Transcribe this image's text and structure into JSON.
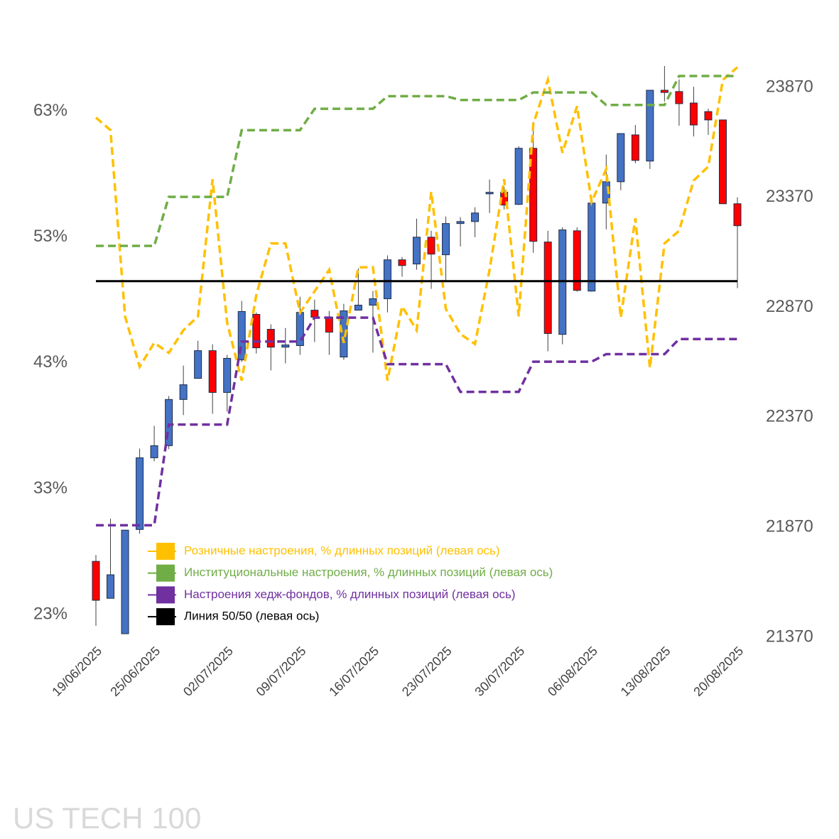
{
  "chart_data": {
    "type": "candlestick",
    "title": "US TECH 100",
    "categories": [
      "19/06/2025",
      null,
      null,
      null,
      "25/06/2025",
      null,
      null,
      null,
      null,
      "02/07/2025",
      null,
      null,
      null,
      null,
      "09/07/2025",
      null,
      null,
      null,
      null,
      "16/07/2025",
      null,
      null,
      null,
      null,
      "23/07/2025",
      null,
      null,
      null,
      null,
      "30/07/2025",
      null,
      null,
      null,
      null,
      "06/08/2025",
      null,
      null,
      null,
      null,
      "13/08/2025",
      null,
      null,
      null,
      null,
      "20/08/2025"
    ],
    "candles": {
      "axis": "y2",
      "up_color": "#4472c4",
      "down_color": "#ff0000",
      "open": [
        21715,
        21547,
        21386,
        21860,
        22186,
        22241,
        22451,
        22547,
        22673,
        22483,
        22631,
        22838,
        22770,
        22689,
        22696,
        22857,
        22825,
        22644,
        22857,
        22880,
        22909,
        23086,
        23067,
        23189,
        23109,
        23251,
        23260,
        23386,
        23393,
        23338,
        23593,
        23167,
        22747,
        23218,
        22944,
        23344,
        23441,
        23654,
        23535,
        23857,
        23851,
        23799,
        23760,
        23722,
        23341
      ],
      "high": [
        21744,
        21909,
        21857,
        22228,
        22331,
        22467,
        22605,
        22718,
        22702,
        22654,
        22899,
        22847,
        22793,
        22776,
        22918,
        22905,
        22854,
        22886,
        23047,
        22944,
        23106,
        23099,
        23273,
        23218,
        23283,
        23280,
        23325,
        23451,
        23418,
        23602,
        23712,
        23218,
        23234,
        23234,
        23370,
        23564,
        23660,
        23699,
        23857,
        23967,
        23906,
        23873,
        23773,
        23722,
        23370
      ],
      "low": [
        21422,
        21547,
        21386,
        21841,
        22170,
        22225,
        22380,
        22547,
        22386,
        22396,
        22622,
        22660,
        22583,
        22615,
        22654,
        22712,
        22654,
        22631,
        22857,
        22664,
        22847,
        23009,
        23041,
        22954,
        22993,
        23147,
        23189,
        23299,
        23315,
        23335,
        23118,
        22670,
        22702,
        22941,
        22941,
        23225,
        23402,
        23525,
        23499,
        23806,
        23696,
        23647,
        23654,
        23341,
        22957
      ],
      "close": [
        21538,
        21654,
        21857,
        22186,
        22241,
        22451,
        22518,
        22673,
        22483,
        22638,
        22851,
        22686,
        22689,
        22699,
        22847,
        22825,
        22757,
        22854,
        22880,
        22909,
        23086,
        23060,
        23189,
        23112,
        23251,
        23260,
        23299,
        23393,
        23335,
        23593,
        23170,
        22751,
        23222,
        22947,
        23344,
        23441,
        23660,
        23538,
        23857,
        23847,
        23796,
        23699,
        23722,
        23341,
        23241
      ]
    },
    "series": [
      {
        "name": "Розничные настроения, % длинных позиций (левая ось)",
        "color": "#ffc000",
        "values": [
          62.5,
          61.5,
          46.7,
          42.7,
          44.6,
          43.8,
          45.6,
          46.7,
          57.6,
          46.2,
          41.6,
          48.4,
          52.5,
          52.5,
          47.0,
          48.7,
          50.4,
          44.6,
          50.6,
          50.6,
          41.6,
          47.5,
          45.6,
          56.6,
          47.3,
          45.3,
          44.5,
          50.4,
          57.6,
          46.7,
          62.0,
          65.5,
          59.7,
          63.4,
          55.8,
          58.4,
          46.6,
          54.5,
          42.6,
          52.5,
          53.5,
          57.5,
          58.6,
          65.5,
          66.5
        ]
      },
      {
        "name": "Институциональные настроения, % длинных позиций (левая ось)",
        "color": "#70ad47",
        "values": [
          52.3,
          52.3,
          52.3,
          52.3,
          52.3,
          56.2,
          56.2,
          56.2,
          56.2,
          56.2,
          61.5,
          61.5,
          61.5,
          61.5,
          61.5,
          63.2,
          63.2,
          63.2,
          63.2,
          63.2,
          64.2,
          64.2,
          64.2,
          64.2,
          64.2,
          63.9,
          63.9,
          63.9,
          63.9,
          63.9,
          64.5,
          64.5,
          64.5,
          64.5,
          64.5,
          63.5,
          63.5,
          63.5,
          63.5,
          63.5,
          65.8,
          65.8,
          65.8,
          65.8,
          65.8
        ]
      },
      {
        "name": "Настроения хедж-фондов, % длинных позиций (левая ось)",
        "color": "#7030a0",
        "values": [
          30.1,
          30.1,
          30.1,
          30.1,
          30.1,
          38.1,
          38.1,
          38.1,
          38.1,
          38.1,
          44.7,
          44.7,
          44.7,
          44.7,
          44.7,
          46.6,
          46.6,
          46.6,
          46.6,
          46.6,
          42.9,
          42.9,
          42.9,
          42.9,
          42.9,
          40.7,
          40.7,
          40.7,
          40.7,
          40.7,
          43.1,
          43.1,
          43.1,
          43.1,
          43.1,
          43.7,
          43.7,
          43.7,
          43.7,
          43.7,
          44.9,
          44.9,
          44.9,
          44.9,
          44.9
        ]
      }
    ],
    "hline": {
      "name": "Линия 50/50 (левая ось)",
      "color": "#000000",
      "value": 49.5
    },
    "ylim": [
      21.2,
      64.9
    ],
    "yticks": [
      {
        "value": 23,
        "label": "23%"
      },
      {
        "value": 33,
        "label": "33%"
      },
      {
        "value": 43,
        "label": "43%"
      },
      {
        "value": 53,
        "label": "53%"
      },
      {
        "value": 63,
        "label": "63%"
      }
    ],
    "y2lim": [
      21370,
      23870
    ],
    "y2ticks": [
      21370,
      21870,
      22370,
      22870,
      23370,
      23870
    ],
    "grid": false
  }
}
